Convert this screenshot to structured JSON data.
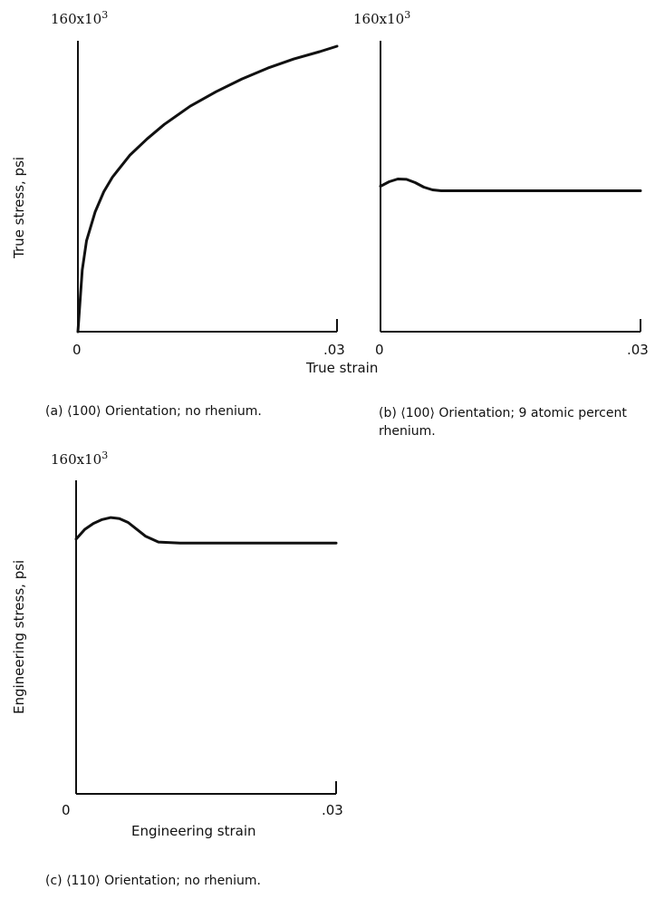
{
  "chart_data": [
    {
      "type": "line",
      "panel": "a",
      "caption": "(a) ⟨100⟩ Orientation; no rhenium.",
      "ylabel": "True stress, psi",
      "xlabel": "True strain",
      "y_top_label": "160x10",
      "y_top_exp": "3",
      "x_tick_labels": [
        "0",
        ".03"
      ],
      "xlim": [
        0,
        0.03
      ],
      "ylim": [
        0,
        160000
      ],
      "series": [
        {
          "x": [
            0.0,
            0.0005,
            0.001,
            0.002,
            0.003,
            0.004,
            0.006,
            0.008,
            0.01,
            0.013,
            0.016,
            0.019,
            0.022,
            0.025,
            0.028,
            0.03
          ],
          "y": [
            0,
            34000,
            50000,
            66000,
            77000,
            85000,
            97000,
            106000,
            114000,
            124000,
            132000,
            139000,
            145000,
            150000,
            154000,
            157000
          ]
        }
      ]
    },
    {
      "type": "line",
      "panel": "b",
      "caption": "(b) ⟨100⟩ Orientation; 9 atomic percent rhenium.",
      "y_top_label": "160x10",
      "y_top_exp": "3",
      "x_tick_labels": [
        "0",
        ".03"
      ],
      "xlim": [
        0,
        0.03
      ],
      "ylim": [
        0,
        160000
      ],
      "series": [
        {
          "x": [
            0.0,
            0.001,
            0.002,
            0.003,
            0.004,
            0.005,
            0.006,
            0.007,
            0.01,
            0.015,
            0.02,
            0.025,
            0.03
          ],
          "y": [
            80000,
            82500,
            84000,
            83800,
            82000,
            79500,
            78000,
            77500,
            77500,
            77500,
            77500,
            77500,
            77500
          ]
        }
      ]
    },
    {
      "type": "line",
      "panel": "c",
      "caption": "(c) ⟨110⟩ Orientation; no rhenium.",
      "ylabel": "Engineering stress, psi",
      "xlabel": "Engineering strain",
      "y_top_label": "160x10",
      "y_top_exp": "3",
      "x_tick_labels": [
        "0",
        ".03"
      ],
      "xlim": [
        0,
        0.03
      ],
      "ylim": [
        0,
        160000
      ],
      "series": [
        {
          "x": [
            0.0,
            0.001,
            0.002,
            0.003,
            0.004,
            0.005,
            0.006,
            0.007,
            0.008,
            0.0095,
            0.012,
            0.016,
            0.02,
            0.025,
            0.03
          ],
          "y": [
            130000,
            135000,
            138000,
            140000,
            141000,
            140500,
            138500,
            135000,
            131500,
            128500,
            128000,
            128000,
            128000,
            128000,
            128000
          ]
        }
      ]
    }
  ]
}
